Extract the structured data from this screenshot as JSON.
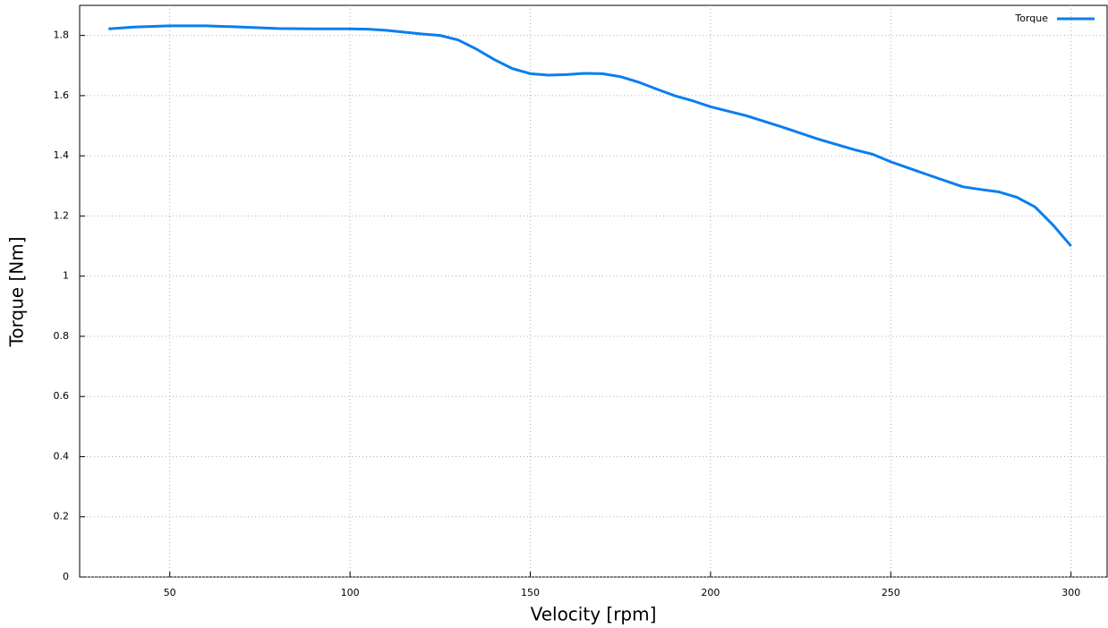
{
  "chart_data": {
    "type": "line",
    "xlabel": "Velocity [rpm]",
    "ylabel": "Torque [Nm]",
    "x": [
      33,
      40,
      50,
      60,
      70,
      80,
      90,
      100,
      105,
      110,
      120,
      125,
      130,
      135,
      140,
      145,
      150,
      155,
      160,
      165,
      170,
      175,
      180,
      185,
      190,
      195,
      200,
      210,
      220,
      230,
      240,
      245,
      250,
      260,
      270,
      275,
      280,
      285,
      290,
      295,
      300
    ],
    "series": [
      {
        "name": "Torque",
        "color": "#0a7ef0",
        "values": [
          1.822,
          1.828,
          1.832,
          1.832,
          1.828,
          1.823,
          1.822,
          1.822,
          1.821,
          1.817,
          1.805,
          1.8,
          1.785,
          1.755,
          1.72,
          1.69,
          1.673,
          1.668,
          1.67,
          1.674,
          1.673,
          1.663,
          1.645,
          1.622,
          1.6,
          1.583,
          1.563,
          1.533,
          1.495,
          1.455,
          1.42,
          1.405,
          1.38,
          1.338,
          1.297,
          1.288,
          1.28,
          1.262,
          1.23,
          1.17,
          1.1
        ]
      }
    ],
    "xlim": [
      25,
      310
    ],
    "xticks": [
      50,
      100,
      150,
      200,
      250,
      300
    ],
    "ylim": [
      0,
      1.9
    ],
    "yticks": [
      0,
      0.2,
      0.4,
      0.6,
      0.8,
      1,
      1.2,
      1.4,
      1.6,
      1.8
    ],
    "grid": true,
    "legend": "top-right"
  }
}
